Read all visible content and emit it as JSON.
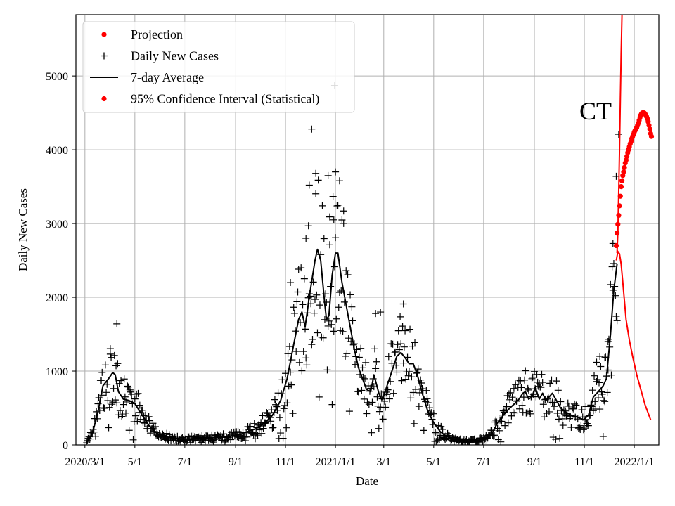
{
  "chart_data": {
    "type": "scatter",
    "title": "",
    "xlabel": "Date",
    "ylabel": "Daily New Cases",
    "annotation": "CT",
    "x_start_date": "2020-02-19",
    "xlim_days": [
      0,
      712
    ],
    "ylim": [
      0,
      5830
    ],
    "grid": true,
    "legend_position": "top-left",
    "x_ticks": [
      {
        "day": 11,
        "label": "2020/3/1"
      },
      {
        "day": 72,
        "label": "5/1"
      },
      {
        "day": 133,
        "label": "7/1"
      },
      {
        "day": 195,
        "label": "9/1"
      },
      {
        "day": 256,
        "label": "11/1"
      },
      {
        "day": 317,
        "label": "2021/1/1"
      },
      {
        "day": 376,
        "label": "3/1"
      },
      {
        "day": 437,
        "label": "5/1"
      },
      {
        "day": 498,
        "label": "7/1"
      },
      {
        "day": 560,
        "label": "9/1"
      },
      {
        "day": 621,
        "label": "11/1"
      },
      {
        "day": 682,
        "label": "2022/1/1"
      }
    ],
    "y_ticks": [
      0,
      1000,
      2000,
      3000,
      4000,
      5000
    ],
    "colors": {
      "projection": "#ff0000",
      "cases": "#000000",
      "average": "#000000",
      "ci": "#ff0000",
      "grid": "#b0b0b0"
    },
    "legend": [
      {
        "key": "projection",
        "label": "Projection",
        "marker": "dot"
      },
      {
        "key": "cases",
        "label": "Daily New Cases",
        "marker": "plus"
      },
      {
        "key": "average",
        "label": "7-day Average",
        "marker": "line"
      },
      {
        "key": "ci",
        "label": "95% Confidence Interval (Statistical)",
        "marker": "dot"
      }
    ],
    "seven_day_average": [
      [
        13,
        30
      ],
      [
        20,
        150
      ],
      [
        27,
        450
      ],
      [
        33,
        800
      ],
      [
        40,
        900
      ],
      [
        45,
        980
      ],
      [
        48,
        950
      ],
      [
        52,
        720
      ],
      [
        58,
        620
      ],
      [
        65,
        600
      ],
      [
        72,
        560
      ],
      [
        80,
        420
      ],
      [
        90,
        250
      ],
      [
        100,
        150
      ],
      [
        110,
        110
      ],
      [
        120,
        90
      ],
      [
        130,
        80
      ],
      [
        140,
        80
      ],
      [
        150,
        90
      ],
      [
        160,
        100
      ],
      [
        170,
        100
      ],
      [
        180,
        110
      ],
      [
        190,
        120
      ],
      [
        200,
        140
      ],
      [
        210,
        180
      ],
      [
        220,
        220
      ],
      [
        230,
        290
      ],
      [
        240,
        400
      ],
      [
        250,
        600
      ],
      [
        258,
        900
      ],
      [
        265,
        1300
      ],
      [
        272,
        1700
      ],
      [
        276,
        1800
      ],
      [
        280,
        1600
      ],
      [
        285,
        2000
      ],
      [
        292,
        2500
      ],
      [
        295,
        2650
      ],
      [
        299,
        2500
      ],
      [
        304,
        1900
      ],
      [
        306,
        1700
      ],
      [
        309,
        1750
      ],
      [
        313,
        2300
      ],
      [
        317,
        2600
      ],
      [
        320,
        2600
      ],
      [
        325,
        2200
      ],
      [
        330,
        1900
      ],
      [
        340,
        1300
      ],
      [
        345,
        1050
      ],
      [
        350,
        900
      ],
      [
        355,
        750
      ],
      [
        360,
        720
      ],
      [
        364,
        950
      ],
      [
        370,
        700
      ],
      [
        374,
        600
      ],
      [
        380,
        800
      ],
      [
        386,
        1000
      ],
      [
        392,
        1200
      ],
      [
        397,
        1250
      ],
      [
        402,
        1180
      ],
      [
        407,
        1100
      ],
      [
        412,
        1100
      ],
      [
        417,
        950
      ],
      [
        423,
        700
      ],
      [
        430,
        450
      ],
      [
        437,
        300
      ],
      [
        445,
        180
      ],
      [
        452,
        120
      ],
      [
        460,
        80
      ],
      [
        470,
        60
      ],
      [
        480,
        50
      ],
      [
        490,
        60
      ],
      [
        500,
        80
      ],
      [
        508,
        150
      ],
      [
        515,
        300
      ],
      [
        522,
        400
      ],
      [
        530,
        500
      ],
      [
        540,
        600
      ],
      [
        546,
        700
      ],
      [
        549,
        720
      ],
      [
        553,
        620
      ],
      [
        557,
        650
      ],
      [
        561,
        780
      ],
      [
        566,
        620
      ],
      [
        570,
        700
      ],
      [
        574,
        600
      ],
      [
        578,
        650
      ],
      [
        582,
        700
      ],
      [
        586,
        620
      ],
      [
        592,
        500
      ],
      [
        598,
        450
      ],
      [
        605,
        400
      ],
      [
        612,
        380
      ],
      [
        620,
        340
      ],
      [
        626,
        400
      ],
      [
        632,
        650
      ],
      [
        638,
        720
      ],
      [
        644,
        800
      ],
      [
        648,
        900
      ],
      [
        653,
        1500
      ],
      [
        657,
        2100
      ],
      [
        661,
        2450
      ]
    ],
    "projection": [
      [
        660,
        2700
      ],
      [
        661,
        2870
      ],
      [
        662,
        2990
      ],
      [
        663,
        3110
      ],
      [
        664,
        3240
      ],
      [
        665,
        3370
      ],
      [
        666,
        3500
      ],
      [
        667,
        3580
      ],
      [
        668,
        3650
      ],
      [
        669,
        3700
      ],
      [
        670,
        3760
      ],
      [
        671,
        3820
      ],
      [
        672,
        3860
      ],
      [
        673,
        3910
      ],
      [
        674,
        3960
      ],
      [
        675,
        4000
      ],
      [
        676,
        4040
      ],
      [
        677,
        4080
      ],
      [
        678,
        4110
      ],
      [
        679,
        4150
      ],
      [
        680,
        4180
      ],
      [
        681,
        4210
      ],
      [
        682,
        4240
      ],
      [
        683,
        4260
      ],
      [
        684,
        4280
      ],
      [
        685,
        4300
      ],
      [
        686,
        4330
      ],
      [
        687,
        4360
      ],
      [
        688,
        4400
      ],
      [
        689,
        4440
      ],
      [
        690,
        4470
      ],
      [
        691,
        4490
      ],
      [
        692,
        4500
      ],
      [
        693,
        4500
      ],
      [
        694,
        4500
      ],
      [
        695,
        4490
      ],
      [
        696,
        4470
      ],
      [
        697,
        4450
      ],
      [
        698,
        4420
      ],
      [
        699,
        4380
      ],
      [
        700,
        4330
      ],
      [
        701,
        4280
      ],
      [
        702,
        4220
      ],
      [
        703,
        4180
      ]
    ],
    "ci_upper": [
      [
        661,
        2600
      ],
      [
        662,
        2900
      ],
      [
        663,
        3400
      ],
      [
        664,
        4000
      ],
      [
        665,
        4700
      ],
      [
        666,
        5300
      ],
      [
        667,
        5830
      ]
    ],
    "ci_lower": [
      [
        660,
        2500
      ],
      [
        662,
        2620
      ],
      [
        664,
        2590
      ],
      [
        666,
        2450
      ],
      [
        668,
        2200
      ],
      [
        670,
        1950
      ],
      [
        672,
        1700
      ],
      [
        676,
        1420
      ],
      [
        680,
        1200
      ],
      [
        685,
        950
      ],
      [
        690,
        750
      ],
      [
        695,
        550
      ],
      [
        700,
        400
      ],
      [
        702,
        340
      ]
    ],
    "daily_new_cases_shape": [
      [
        13,
        40
      ],
      [
        20,
        150
      ],
      [
        27,
        450
      ],
      [
        33,
        800
      ],
      [
        40,
        900
      ],
      [
        45,
        980
      ],
      [
        48,
        950
      ],
      [
        52,
        720
      ],
      [
        58,
        620
      ],
      [
        65,
        600
      ],
      [
        72,
        560
      ],
      [
        80,
        420
      ],
      [
        90,
        250
      ],
      [
        100,
        150
      ],
      [
        110,
        110
      ],
      [
        120,
        90
      ],
      [
        130,
        80
      ],
      [
        140,
        80
      ],
      [
        150,
        90
      ],
      [
        160,
        100
      ],
      [
        170,
        100
      ],
      [
        180,
        110
      ],
      [
        190,
        120
      ],
      [
        200,
        140
      ],
      [
        210,
        180
      ],
      [
        220,
        220
      ],
      [
        230,
        290
      ],
      [
        240,
        400
      ],
      [
        250,
        600
      ],
      [
        258,
        900
      ],
      [
        265,
        1300
      ],
      [
        272,
        1700
      ],
      [
        276,
        1800
      ],
      [
        280,
        1600
      ],
      [
        285,
        2000
      ],
      [
        292,
        2500
      ],
      [
        295,
        2650
      ],
      [
        299,
        2500
      ],
      [
        304,
        1900
      ],
      [
        306,
        1700
      ],
      [
        309,
        1750
      ],
      [
        313,
        2300
      ],
      [
        317,
        2600
      ],
      [
        320,
        2600
      ],
      [
        325,
        2200
      ],
      [
        330,
        1900
      ],
      [
        340,
        1300
      ],
      [
        345,
        1050
      ],
      [
        350,
        900
      ],
      [
        355,
        750
      ],
      [
        360,
        720
      ],
      [
        364,
        950
      ],
      [
        370,
        700
      ],
      [
        374,
        600
      ],
      [
        380,
        800
      ],
      [
        386,
        1000
      ],
      [
        392,
        1200
      ],
      [
        397,
        1250
      ],
      [
        402,
        1180
      ],
      [
        407,
        1100
      ],
      [
        412,
        1100
      ],
      [
        417,
        950
      ],
      [
        423,
        700
      ],
      [
        430,
        450
      ],
      [
        437,
        300
      ],
      [
        445,
        180
      ],
      [
        452,
        120
      ],
      [
        460,
        80
      ],
      [
        470,
        60
      ],
      [
        480,
        50
      ],
      [
        490,
        60
      ],
      [
        500,
        80
      ],
      [
        508,
        150
      ],
      [
        515,
        300
      ],
      [
        522,
        400
      ],
      [
        530,
        500
      ],
      [
        540,
        600
      ],
      [
        546,
        700
      ],
      [
        549,
        720
      ],
      [
        553,
        620
      ],
      [
        557,
        650
      ],
      [
        561,
        780
      ],
      [
        566,
        620
      ],
      [
        570,
        700
      ],
      [
        574,
        600
      ],
      [
        578,
        650
      ],
      [
        582,
        700
      ],
      [
        586,
        620
      ],
      [
        592,
        500
      ],
      [
        598,
        450
      ],
      [
        605,
        400
      ],
      [
        612,
        380
      ],
      [
        620,
        340
      ],
      [
        626,
        400
      ],
      [
        632,
        650
      ],
      [
        638,
        720
      ],
      [
        644,
        800
      ],
      [
        648,
        900
      ],
      [
        653,
        1500
      ],
      [
        657,
        2100
      ],
      [
        661,
        2450
      ]
    ],
    "daily_new_cases_outliers": [
      [
        50,
        1640
      ],
      [
        42,
        1230
      ],
      [
        288,
        4280
      ],
      [
        293,
        3680
      ],
      [
        285,
        3520
      ],
      [
        308,
        3650
      ],
      [
        317,
        3700
      ],
      [
        322,
        3580
      ],
      [
        316,
        4870
      ],
      [
        310,
        3090
      ],
      [
        315,
        3050
      ],
      [
        327,
        3170
      ],
      [
        663,
        4210
      ],
      [
        660,
        3640
      ],
      [
        656,
        2730
      ],
      [
        650,
        1400
      ],
      [
        646,
        1180
      ],
      [
        640,
        1200
      ],
      [
        636,
        1120
      ],
      [
        366,
        1780
      ],
      [
        372,
        1800
      ],
      [
        400,
        1910
      ],
      [
        284,
        2970
      ],
      [
        281,
        2800
      ],
      [
        262,
        2200
      ]
    ]
  }
}
